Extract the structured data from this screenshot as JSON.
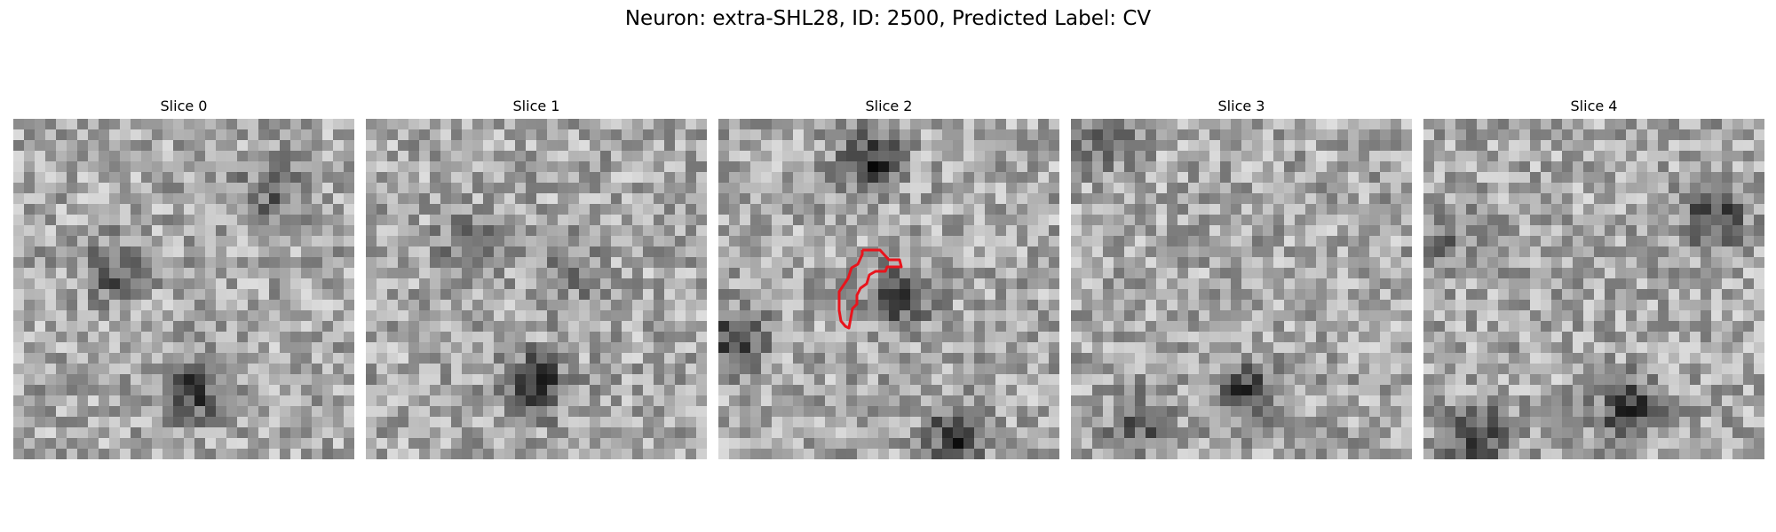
{
  "figure": {
    "title": "Neuron: extra-SHL28, ID: 2500, Predicted Label: CV"
  },
  "panels": [
    {
      "label": "Slice 0",
      "seed": 11,
      "blobs": [
        [
          0.3,
          0.45,
          0.55
        ],
        [
          0.75,
          0.22,
          0.45
        ],
        [
          0.52,
          0.8,
          0.8
        ]
      ],
      "contour": false
    },
    {
      "label": "Slice 1",
      "seed": 23,
      "blobs": [
        [
          0.3,
          0.37,
          0.4
        ],
        [
          0.6,
          0.45,
          0.35
        ],
        [
          0.5,
          0.78,
          0.9
        ]
      ],
      "contour": false
    },
    {
      "label": "Slice 2",
      "seed": 37,
      "blobs": [
        [
          0.45,
          0.12,
          0.85
        ],
        [
          0.53,
          0.53,
          0.7
        ],
        [
          0.05,
          0.65,
          0.8
        ],
        [
          0.7,
          0.93,
          0.85
        ]
      ],
      "contour": true
    },
    {
      "label": "Slice 3",
      "seed": 51,
      "blobs": [
        [
          0.1,
          0.05,
          0.5
        ],
        [
          0.52,
          0.8,
          0.8
        ],
        [
          0.2,
          0.9,
          0.55
        ]
      ],
      "contour": false
    },
    {
      "label": "Slice 4",
      "seed": 67,
      "blobs": [
        [
          0.85,
          0.28,
          0.75
        ],
        [
          0.6,
          0.85,
          0.85
        ],
        [
          0.15,
          0.93,
          0.75
        ],
        [
          0.05,
          0.35,
          0.35
        ]
      ],
      "contour": false
    }
  ],
  "image": {
    "grid_size": 32,
    "colormap": "gray",
    "contour_color": "#e8141c"
  }
}
